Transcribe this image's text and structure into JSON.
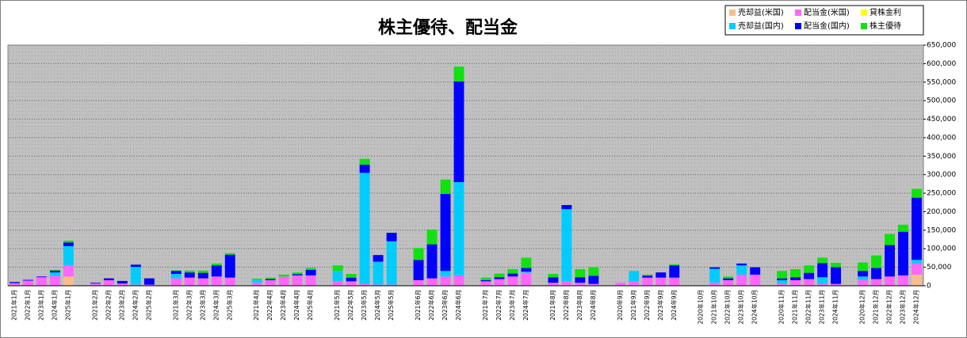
{
  "chart_data": {
    "type": "stacked-bar",
    "title": "株主優待、配当金",
    "categories": [
      "2021年1月",
      "2022年1月",
      "2023年1月",
      "2024年1月",
      "2025年1月",
      null,
      "2021年2月",
      "2022年2月",
      "2023年2月",
      "2024年2月",
      "2025年2月",
      null,
      "2021年3月",
      "2022年3月",
      "2023年3月",
      "2024年3月",
      "2025年3月",
      null,
      "2021年4月",
      "2022年4月",
      "2023年4月",
      "2024年4月",
      "2025年4月",
      null,
      "2021年5月",
      "2022年5月",
      "2023年5月",
      "2024年5月",
      "2025年5月",
      null,
      "2021年6月",
      "2022年6月",
      "2023年6月",
      "2024年6月",
      null,
      "2021年7月",
      "2022年7月",
      "2023年7月",
      "2024年7月",
      null,
      "2021年8月",
      "2022年8月",
      "2023年8月",
      "2024年8月",
      null,
      "2020年9月",
      "2021年9月",
      "2022年9月",
      "2023年9月",
      "2024年9月",
      null,
      "2020年10月",
      "2021年10月",
      "2022年10月",
      "2023年10月",
      "2024年10月",
      null,
      "2020年11月",
      "2021年11月",
      "2022年11月",
      "2023年11月",
      "2024年11月",
      null,
      "2020年12月",
      "2021年12月",
      "2022年12月",
      "2023年12月",
      "2024年12月"
    ],
    "series": [
      {
        "name": "売却益(米国)",
        "color": "#f9bc8c",
        "values": [
          0,
          0,
          0,
          0,
          25000,
          null,
          0,
          0,
          0,
          0,
          0,
          null,
          0,
          0,
          0,
          0,
          0,
          null,
          0,
          0,
          0,
          0,
          0,
          null,
          0,
          0,
          0,
          0,
          0,
          null,
          0,
          0,
          0,
          0,
          null,
          0,
          0,
          0,
          0,
          null,
          0,
          0,
          0,
          0,
          null,
          0,
          0,
          0,
          0,
          0,
          null,
          0,
          0,
          0,
          0,
          0,
          null,
          0,
          0,
          0,
          0,
          0,
          null,
          0,
          0,
          0,
          0,
          30000
        ]
      },
      {
        "name": "配当金(米国)",
        "color": "#ff66ff",
        "values": [
          7000,
          14000,
          23000,
          26000,
          30000,
          null,
          6000,
          15000,
          6000,
          3000,
          3000,
          null,
          20000,
          22000,
          20000,
          25000,
          22000,
          null,
          8000,
          15000,
          25000,
          28000,
          28000,
          null,
          12000,
          12000,
          5000,
          3000,
          3000,
          null,
          15000,
          20000,
          25000,
          28000,
          null,
          12000,
          18000,
          25000,
          35000,
          null,
          8000,
          12000,
          8000,
          5000,
          null,
          8000,
          12000,
          22000,
          22000,
          22000,
          null,
          0,
          8000,
          15000,
          30000,
          30000,
          null,
          5000,
          15000,
          18000,
          5000,
          5000,
          null,
          15000,
          18000,
          25000,
          28000,
          30000
        ]
      },
      {
        "name": "貸株金利",
        "color": "#ffff00",
        "values": [
          0,
          0,
          0,
          0,
          0,
          null,
          0,
          0,
          0,
          0,
          0,
          null,
          0,
          0,
          0,
          0,
          0,
          null,
          0,
          0,
          0,
          0,
          0,
          null,
          0,
          0,
          0,
          0,
          0,
          null,
          0,
          0,
          0,
          0,
          null,
          0,
          0,
          0,
          0,
          null,
          0,
          0,
          0,
          0,
          null,
          0,
          0,
          0,
          0,
          0,
          null,
          0,
          0,
          0,
          0,
          0,
          null,
          0,
          0,
          0,
          0,
          0,
          null,
          0,
          0,
          0,
          0,
          0
        ]
      },
      {
        "name": "売却益(国内)",
        "color": "#00ccff",
        "values": [
          0,
          0,
          0,
          10000,
          52000,
          null,
          0,
          0,
          0,
          48000,
          0,
          null,
          12000,
          0,
          0,
          0,
          0,
          null,
          8000,
          0,
          0,
          0,
          0,
          null,
          28000,
          0,
          300000,
          62000,
          117000,
          null,
          0,
          0,
          15000,
          252000,
          null,
          0,
          0,
          0,
          3000,
          null,
          0,
          195000,
          0,
          0,
          null,
          0,
          28000,
          0,
          0,
          0,
          null,
          0,
          38000,
          0,
          25000,
          0,
          null,
          10000,
          0,
          0,
          18000,
          0,
          null,
          10000,
          0,
          0,
          0,
          10000
        ]
      },
      {
        "name": "配当金(国内)",
        "color": "#0000ff",
        "values": [
          3000,
          2000,
          2000,
          5000,
          10000,
          null,
          2000,
          5000,
          7000,
          6000,
          17000,
          null,
          8000,
          14000,
          15000,
          30000,
          62000,
          null,
          0,
          3000,
          0,
          3000,
          15000,
          null,
          0,
          10000,
          22000,
          18000,
          23000,
          null,
          55000,
          92000,
          208000,
          272000,
          null,
          3000,
          5000,
          8000,
          10000,
          null,
          15000,
          11000,
          15000,
          22000,
          null,
          0,
          0,
          5000,
          14000,
          33000,
          null,
          0,
          4000,
          5000,
          5000,
          20000,
          null,
          5000,
          8000,
          17000,
          38000,
          45000,
          null,
          15000,
          30000,
          85000,
          118000,
          168000
        ]
      },
      {
        "name": "株主優待",
        "color": "#11e011",
        "values": [
          0,
          0,
          0,
          2000,
          5000,
          null,
          0,
          0,
          0,
          0,
          0,
          null,
          2000,
          5000,
          6000,
          5000,
          4000,
          null,
          3000,
          4000,
          5000,
          5000,
          5000,
          null,
          15000,
          10000,
          16000,
          0,
          0,
          null,
          32000,
          40000,
          39000,
          40000,
          null,
          7000,
          10000,
          12000,
          28000,
          null,
          9000,
          0,
          22000,
          23000,
          null,
          0,
          0,
          3000,
          0,
          3000,
          null,
          0,
          0,
          5000,
          0,
          0,
          null,
          20000,
          22000,
          20000,
          15000,
          12000,
          null,
          23000,
          34000,
          30000,
          19000,
          24000
        ]
      }
    ],
    "ylim": [
      0,
      650000
    ],
    "yticks": [
      0,
      {
        "value": 50000,
        "label": "50,000"
      },
      {
        "value": 100000,
        "label": "100,000"
      },
      {
        "value": 150000,
        "label": "150,000"
      },
      {
        "value": 200000,
        "label": "200,000"
      },
      {
        "value": 250000,
        "label": "250,000"
      },
      {
        "value": 300000,
        "label": "300,000"
      },
      {
        "value": 350000,
        "label": "350,000"
      },
      {
        "value": 400000,
        "label": "400,000"
      },
      {
        "value": 450000,
        "label": "450,000"
      },
      {
        "value": 500000,
        "label": "500,000"
      },
      {
        "value": 550000,
        "label": "550,000"
      },
      {
        "value": 600000,
        "label": "600,000"
      },
      {
        "value": 650000,
        "label": "650,000"
      }
    ],
    "y_axis_side": "right",
    "grid": true,
    "legend": "top-right"
  }
}
